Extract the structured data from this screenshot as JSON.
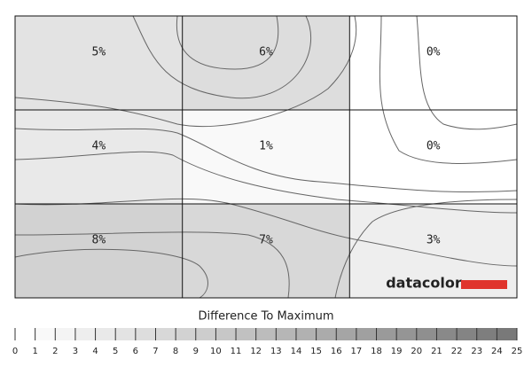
{
  "chart_data": {
    "type": "heatmap",
    "z": [
      [
        5,
        6,
        0
      ],
      [
        4,
        1,
        0
      ],
      [
        8,
        7,
        3
      ]
    ],
    "value_labels": [
      [
        "5%",
        "6%",
        "0%"
      ],
      [
        "4%",
        "1%",
        "0%"
      ],
      [
        "8%",
        "7%",
        "3%"
      ]
    ],
    "colorbar_title": "Difference To Maximum",
    "clim": [
      0,
      25
    ],
    "cticks": [
      0,
      1,
      2,
      3,
      4,
      5,
      6,
      7,
      8,
      9,
      10,
      11,
      12,
      13,
      14,
      15,
      16,
      17,
      18,
      19,
      20,
      21,
      22,
      23,
      24,
      25
    ],
    "brand": "datacolor"
  }
}
